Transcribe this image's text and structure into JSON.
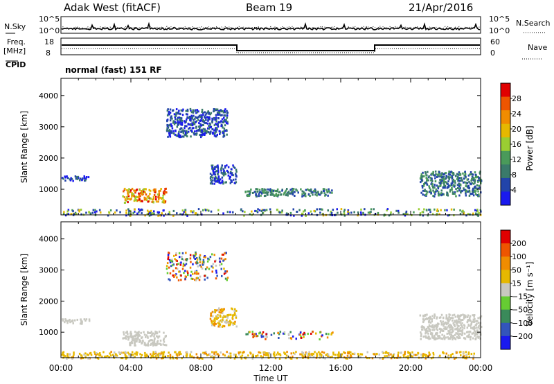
{
  "header": {
    "station": "Adak West (fitACF)",
    "beam": "Beam 19",
    "date": "21/Apr/2016"
  },
  "nsky_panel": {
    "left_label": "N.Sky",
    "right_label": "N.Search",
    "left_ticks": [
      "10^5",
      "10^0"
    ],
    "right_ticks": [
      "10^5",
      "10^0"
    ]
  },
  "freq_panel": {
    "left_label": "Freq.",
    "left_unit": "[MHz]",
    "cpid_label": "CPID",
    "right_label": "Nave",
    "left_ticks": [
      "18",
      "8"
    ],
    "right_ticks": [
      "60",
      "0"
    ],
    "cpid_text": "normal (fast) 151 RF"
  },
  "chart_data": [
    {
      "type": "heatmap",
      "name": "power",
      "ylabel": "Slant Range [km]",
      "ylim": [
        180,
        4550
      ],
      "yticks": [
        "1000",
        "2000",
        "3000",
        "4000"
      ],
      "xlim": [
        0,
        24
      ],
      "colorbar": {
        "label": "Power [dB]",
        "ticks": [
          "4",
          "8",
          "12",
          "16",
          "20",
          "24",
          "28"
        ],
        "colors": [
          "#1a1aee",
          "#2244aa",
          "#3a7a6a",
          "#4a9a5a",
          "#9acd32",
          "#e6b800",
          "#f08c00",
          "#ee5500",
          "#e00000"
        ]
      },
      "regions": [
        {
          "t": [
            3.5,
            6.0
          ],
          "r": [
            600,
            1050
          ],
          "level": "high"
        },
        {
          "t": [
            0.0,
            1.6
          ],
          "r": [
            1300,
            1450
          ],
          "level": "low"
        },
        {
          "t": [
            8.5,
            10.0
          ],
          "r": [
            1200,
            1800
          ],
          "level": "low"
        },
        {
          "t": [
            10.5,
            15.5
          ],
          "r": [
            800,
            1050
          ],
          "level": "mid"
        },
        {
          "t": [
            20.5,
            24.0
          ],
          "r": [
            800,
            1600
          ],
          "level": "mid"
        },
        {
          "t": [
            6.0,
            9.5
          ],
          "r": [
            2700,
            3600
          ],
          "level": "low"
        },
        {
          "t": [
            0.0,
            24.0
          ],
          "r": [
            180,
            400
          ],
          "level": "mixed"
        }
      ]
    },
    {
      "type": "heatmap",
      "name": "velocity",
      "ylabel": "Slant Range [km]",
      "ylim": [
        180,
        4550
      ],
      "yticks": [
        "1000",
        "2000",
        "3000",
        "4000"
      ],
      "xlim": [
        0,
        24
      ],
      "xticks": [
        "00:00",
        "04:00",
        "08:00",
        "12:00",
        "16:00",
        "20:00",
        "00:00"
      ],
      "xlabel": "Time UT",
      "colorbar": {
        "label": "Velocity [m s⁻¹]",
        "ticks": [
          "200",
          "100",
          "50",
          "15",
          "−15",
          "−50",
          "−100",
          "−200"
        ],
        "colors": [
          "#1a1aee",
          "#3355bb",
          "#3a8a5a",
          "#66cc33",
          "#c8c8c0",
          "#e6b800",
          "#f08c00",
          "#ee5500",
          "#e00000"
        ]
      },
      "regions": [
        {
          "t": [
            3.5,
            6.0
          ],
          "r": [
            600,
            1050
          ],
          "level": "ground"
        },
        {
          "t": [
            0.0,
            1.6
          ],
          "r": [
            1300,
            1450
          ],
          "level": "ground"
        },
        {
          "t": [
            8.5,
            10.0
          ],
          "r": [
            1200,
            1800
          ],
          "level": "neg"
        },
        {
          "t": [
            10.5,
            15.5
          ],
          "r": [
            800,
            1050
          ],
          "level": "mixed"
        },
        {
          "t": [
            20.5,
            24.0
          ],
          "r": [
            800,
            1600
          ],
          "level": "ground"
        },
        {
          "t": [
            6.0,
            9.5
          ],
          "r": [
            2700,
            3600
          ],
          "level": "mixed"
        },
        {
          "t": [
            0.0,
            24.0
          ],
          "r": [
            180,
            400
          ],
          "level": "neg"
        }
      ]
    }
  ]
}
